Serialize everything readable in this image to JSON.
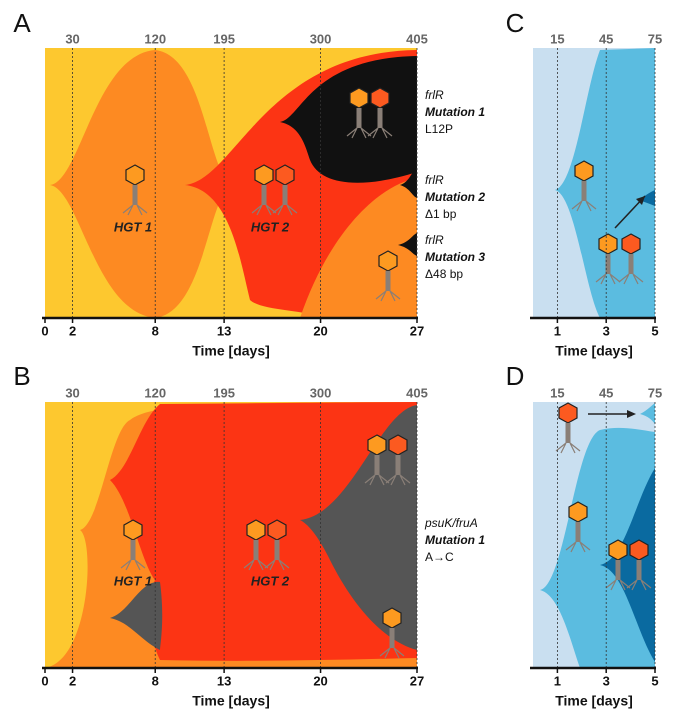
{
  "panels": [
    {
      "letter": "A",
      "xlim": [
        0,
        27
      ],
      "xticks": [
        0,
        2,
        8,
        13,
        20,
        27
      ],
      "x2lim": [
        0,
        405
      ],
      "x2ticks": [
        30,
        120,
        195,
        300,
        405
      ],
      "xlabel": "Time [days]",
      "labels": [
        "HGT 1",
        "HGT 2"
      ],
      "annotations": [
        {
          "gene": "frlR",
          "mutation": "Mutation 1",
          "change": "L12P"
        },
        {
          "gene": "frlR",
          "mutation": "Mutation 2",
          "change": "Δ1 bp"
        },
        {
          "gene": "frlR",
          "mutation": "Mutation 3",
          "change": "Δ48 bp"
        }
      ]
    },
    {
      "letter": "B",
      "xlim": [
        0,
        27
      ],
      "xticks": [
        0,
        2,
        8,
        13,
        20,
        27
      ],
      "x2lim": [
        0,
        405
      ],
      "x2ticks": [
        30,
        120,
        195,
        300,
        405
      ],
      "xlabel": "Time [days]",
      "labels": [
        "HGT 1",
        "HGT 2"
      ],
      "annotations": [
        {
          "gene": "psuK/fruA",
          "mutation": "Mutation 1",
          "change": "A→C"
        }
      ]
    },
    {
      "letter": "C",
      "xlim": [
        0,
        5
      ],
      "xticks": [
        1,
        3,
        5
      ],
      "x2lim": [
        0,
        75
      ],
      "x2ticks": [
        15,
        45,
        75
      ],
      "xlabel": "Time [days]",
      "labels": [],
      "annotations": []
    },
    {
      "letter": "D",
      "xlim": [
        0,
        5
      ],
      "xticks": [
        1,
        3,
        5
      ],
      "x2lim": [
        0,
        75
      ],
      "x2ticks": [
        15,
        45,
        75
      ],
      "xlabel": "Time [days]",
      "labels": [],
      "annotations": []
    }
  ]
}
